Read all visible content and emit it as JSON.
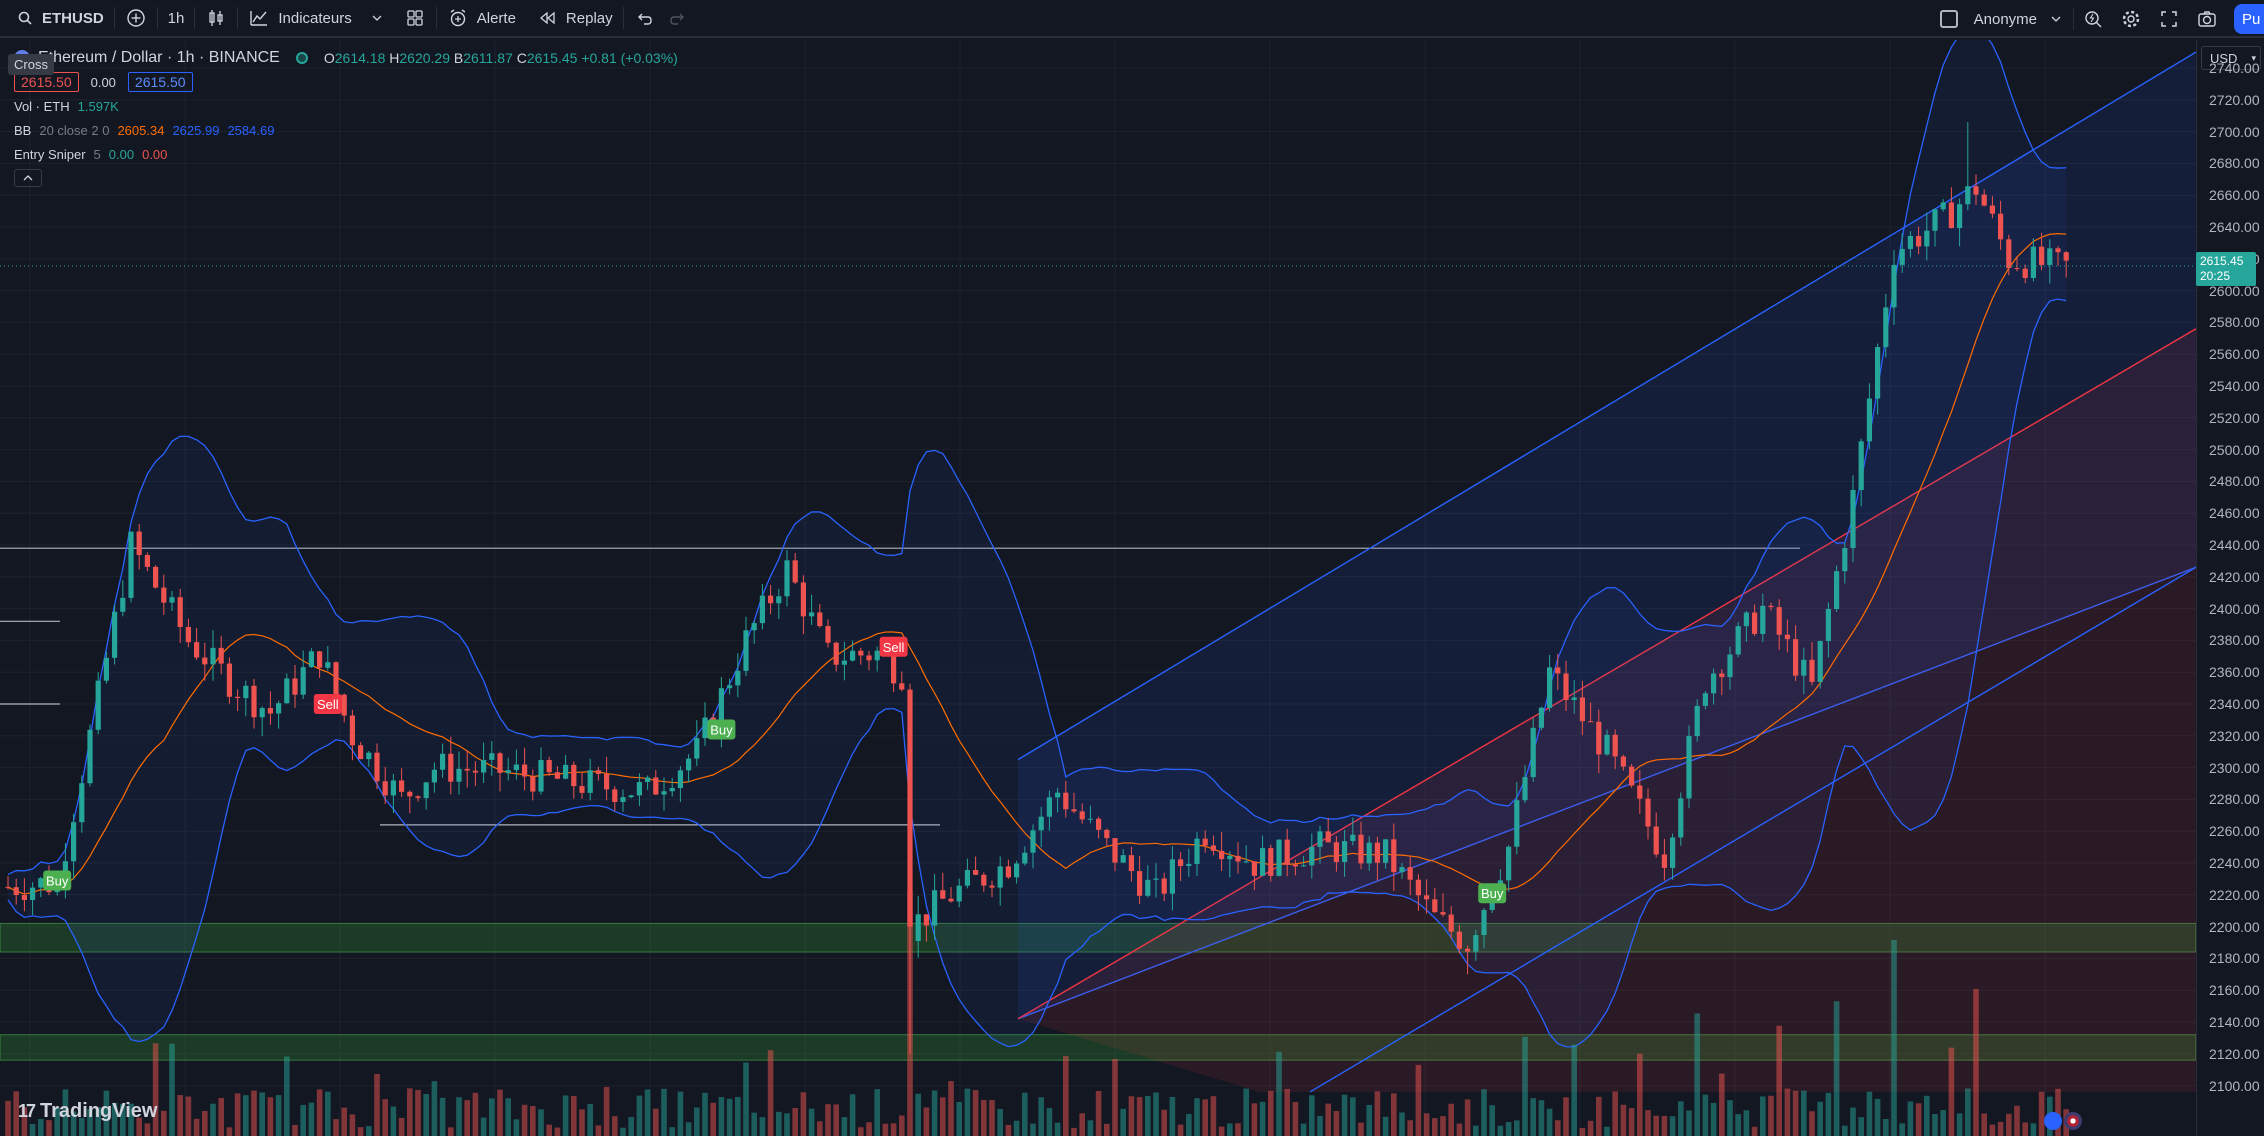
{
  "toolbar": {
    "symbol": "ETHUSD",
    "interval": "1h",
    "indicators_label": "Indicateurs",
    "alert_label": "Alerte",
    "replay_label": "Replay",
    "account_label": "Anonyme",
    "publish_label": "Pu"
  },
  "legend": {
    "crosshair_tip": "Cross",
    "symbol_title": "Ethereum / Dollar · 1h · BINANCE",
    "open_label": "O",
    "open": "2614.18",
    "high_label": "H",
    "high": "2620.29",
    "low_label": "B",
    "low": "2611.87",
    "close_label": "C",
    "close": "2615.45",
    "change": "+0.81 (+0.03%)",
    "sell_price": "2615.50",
    "spread": "0.00",
    "buy_price": "2615.50",
    "vol_label": "Vol · ETH",
    "vol_value": "1.597K",
    "bb_label": "BB",
    "bb_params": "20 close 2 0",
    "bb_basis": "2605.34",
    "bb_upper": "2625.99",
    "bb_lower": "2584.69",
    "entry_label": "Entry Sniper",
    "entry_param": "5",
    "entry_v1": "0.00",
    "entry_v2": "0.00"
  },
  "price_axis": {
    "currency": "USD",
    "ticks": [
      "2740.00",
      "2720.00",
      "2700.00",
      "2680.00",
      "2660.00",
      "2640.00",
      "2620.00",
      "2600.00",
      "2580.00",
      "2560.00",
      "2540.00",
      "2520.00",
      "2500.00",
      "2480.00",
      "2460.00",
      "2440.00",
      "2420.00",
      "2400.00",
      "2380.00",
      "2360.00",
      "2340.00",
      "2320.00",
      "2300.00",
      "2280.00",
      "2260.00",
      "2240.00",
      "2220.00",
      "2200.00",
      "2180.00",
      "2160.00",
      "2140.00",
      "2120.00",
      "2100.00"
    ],
    "last_price": "2615.45",
    "countdown": "20:25"
  },
  "signals": [
    {
      "label": "Buy",
      "type": "buy",
      "index": 6,
      "price": 2229
    },
    {
      "label": "Sell",
      "type": "sell",
      "index": 39,
      "price": 2340
    },
    {
      "label": "Buy",
      "type": "buy",
      "index": 87,
      "price": 2324
    },
    {
      "label": "Sell",
      "type": "sell",
      "index": 108,
      "price": 2376
    },
    {
      "label": "Buy",
      "type": "buy",
      "index": 181,
      "price": 2221
    }
  ],
  "branding": "TradingView",
  "colors": {
    "up": "#26a69a",
    "down": "#ef5350",
    "bb_band": "#2962ff",
    "bb_basis": "#ff6d00",
    "channel_blue": "#2962ff",
    "channel_red": "#f23645",
    "zone_green": "#2e7d32"
  },
  "chart_data": {
    "type": "candlestick",
    "price_range": [
      2096,
      2750
    ],
    "price_anchors": [
      [
        0,
        2225
      ],
      [
        6,
        2228
      ],
      [
        10,
        2320
      ],
      [
        15,
        2440
      ],
      [
        22,
        2380
      ],
      [
        28,
        2350
      ],
      [
        32,
        2335
      ],
      [
        38,
        2372
      ],
      [
        42,
        2320
      ],
      [
        48,
        2280
      ],
      [
        52,
        2300
      ],
      [
        60,
        2298
      ],
      [
        70,
        2290
      ],
      [
        78,
        2285
      ],
      [
        84,
        2310
      ],
      [
        90,
        2380
      ],
      [
        95,
        2425
      ],
      [
        100,
        2370
      ],
      [
        106,
        2372
      ],
      [
        109,
        2360
      ],
      [
        110,
        2200
      ],
      [
        115,
        2220
      ],
      [
        122,
        2240
      ],
      [
        128,
        2285
      ],
      [
        134,
        2250
      ],
      [
        140,
        2220
      ],
      [
        146,
        2260
      ],
      [
        152,
        2240
      ],
      [
        160,
        2250
      ],
      [
        168,
        2245
      ],
      [
        174,
        2205
      ],
      [
        178,
        2190
      ],
      [
        183,
        2250
      ],
      [
        188,
        2360
      ],
      [
        195,
        2310
      ],
      [
        202,
        2245
      ],
      [
        207,
        2355
      ],
      [
        214,
        2400
      ],
      [
        220,
        2350
      ],
      [
        225,
        2470
      ],
      [
        230,
        2625
      ],
      [
        236,
        2645
      ],
      [
        240,
        2665
      ],
      [
        244,
        2620
      ],
      [
        250,
        2615
      ]
    ],
    "volume_spikes": {
      "110": 1.0,
      "223": 0.55,
      "230": 0.8,
      "240": 0.6,
      "206": 0.5,
      "216": 0.45,
      "90": 0.3
    }
  }
}
